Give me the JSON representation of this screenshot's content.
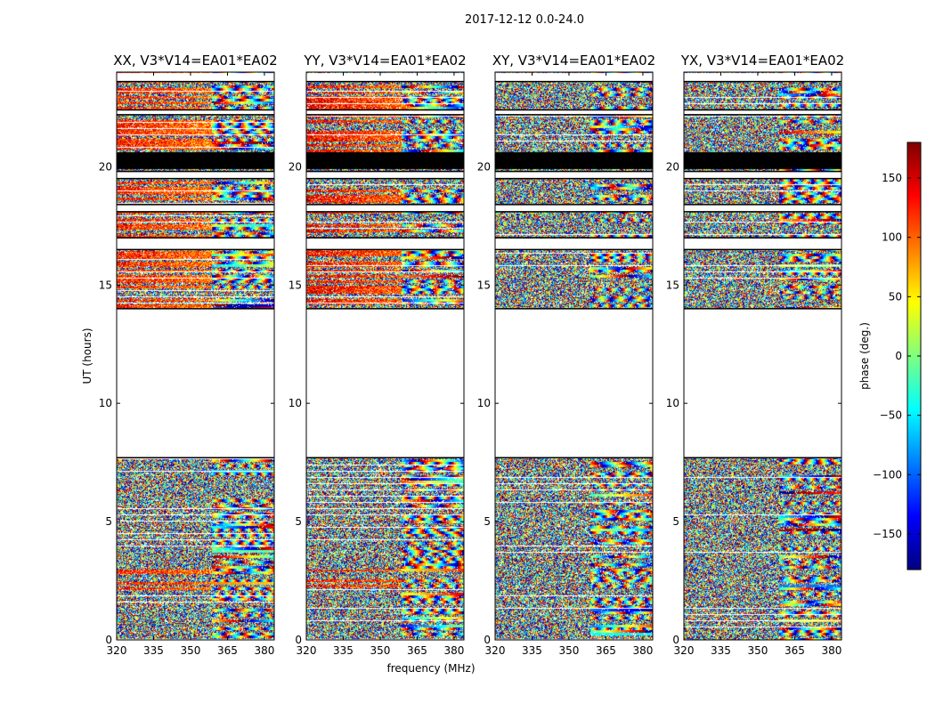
{
  "chart_data": {
    "type": "heatmap",
    "suptitle": "2017-12-12 0.0-24.0",
    "xlabel": "frequency (MHz)",
    "ylabel": "UT (hours)",
    "xlim": [
      320,
      384
    ],
    "ylim": [
      0,
      24
    ],
    "xticks": [
      320,
      335,
      350,
      365,
      380
    ],
    "yticks": [
      0,
      5,
      10,
      15,
      20
    ],
    "panels": [
      {
        "title": "XX, V3*V14=EA01*EA02",
        "coherent_bias": 130
      },
      {
        "title": "YY, V3*V14=EA01*EA02",
        "coherent_bias": 140
      },
      {
        "title": "XY, V3*V14=EA01*EA02",
        "coherent_bias": null
      },
      {
        "title": "YX, V3*V14=EA01*EA02",
        "coherent_bias": null
      }
    ],
    "data_gaps_hours": [
      [
        7.7,
        14.0
      ],
      [
        16.5,
        17.0
      ],
      [
        18.1,
        18.4
      ],
      [
        19.5,
        19.8
      ],
      [
        22.2,
        22.4
      ],
      [
        23.6,
        24.0
      ]
    ],
    "flagged_block_hours": [
      19.9,
      20.65
    ],
    "colorbar": {
      "label": "phase (deg.)",
      "range": [
        -180,
        180
      ],
      "ticks": [
        -150,
        -100,
        -50,
        0,
        50,
        100,
        150
      ],
      "cmap": [
        "#00007f",
        "#0000ff",
        "#007fff",
        "#00ffff",
        "#7fff7f",
        "#ffff00",
        "#ff7f00",
        "#ff0000",
        "#7f0000"
      ]
    }
  }
}
